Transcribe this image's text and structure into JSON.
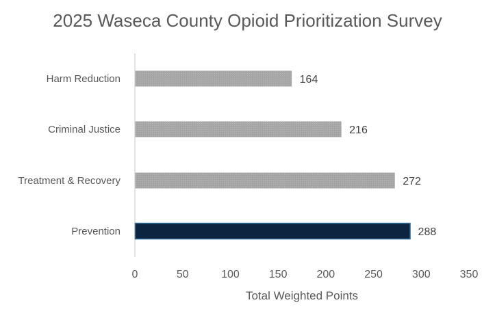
{
  "chart_data": {
    "type": "bar",
    "orientation": "horizontal",
    "title": "2025 Waseca County Opioid Prioritization Survey",
    "categories": [
      "Prevention",
      "Treatment & Recovery",
      "Criminal Justice",
      "Harm Reduction"
    ],
    "values": [
      288,
      272,
      216,
      164
    ],
    "xlabel": "Total Weighted Points",
    "ylabel": "",
    "xlim": [
      0,
      350
    ],
    "xticks": [
      0,
      50,
      100,
      150,
      200,
      250,
      300,
      350
    ],
    "data_labels": true,
    "grid": false,
    "legend": "none",
    "colors": {
      "highlight": "#0d2440",
      "highlight_border": "#2e6f99",
      "default": "#a6a6a6",
      "text": "#595959",
      "value_text": "#404040",
      "axis_line": "#d9d9d9"
    }
  }
}
